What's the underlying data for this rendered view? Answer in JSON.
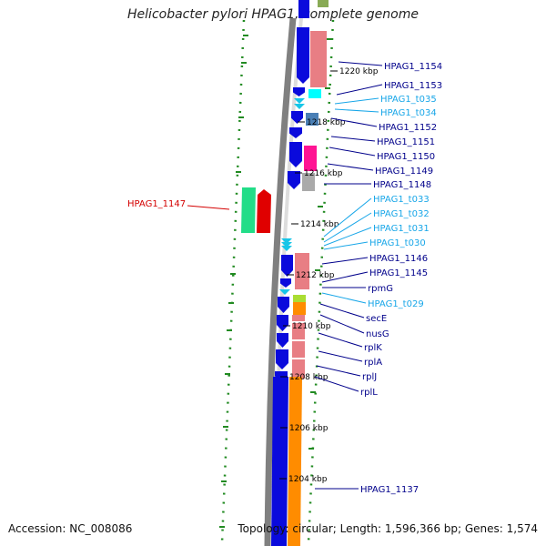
{
  "title": "Helicobacter pylori HPAG1, complete genome",
  "footer": {
    "accession": "Accession: NC_008086",
    "topology": "Topology: circular; Length: 1,596,366 bp; Genes: 1,574"
  },
  "colors": {
    "cds": "#0a0adc",
    "cds_track": "#e87e84",
    "trna": "#17c6e8",
    "trna_track": "#00ffff",
    "rrna_like": "#4a7fb5",
    "pink_magenta": "#ff1493",
    "grey": "#aaaaaa",
    "orange": "#ff8c00",
    "green_lime": "#aadd33",
    "highlight_label": "#d40000",
    "cds_label": "#00008b",
    "trna_label": "#17a6e8",
    "gc_dots": "#228b22"
  },
  "scale_labels": [
    "1220 kbp",
    "1218 kbp",
    "1216 kbp",
    "1214 kbp",
    "1212 kbp",
    "1210 kbp",
    "1208 kbp",
    "1206 kbp",
    "1204 kbp"
  ],
  "gene_labels": [
    {
      "text": "HPAG1_1154",
      "kind": "cds"
    },
    {
      "text": "HPAG1_1153",
      "kind": "cds"
    },
    {
      "text": "HPAG1_t035",
      "kind": "trna"
    },
    {
      "text": "HPAG1_t034",
      "kind": "trna"
    },
    {
      "text": "HPAG1_1152",
      "kind": "cds"
    },
    {
      "text": "HPAG1_1151",
      "kind": "cds"
    },
    {
      "text": "HPAG1_1150",
      "kind": "cds"
    },
    {
      "text": "HPAG1_1149",
      "kind": "cds"
    },
    {
      "text": "HPAG1_1148",
      "kind": "cds"
    },
    {
      "text": "HPAG1_t033",
      "kind": "trna"
    },
    {
      "text": "HPAG1_t032",
      "kind": "trna"
    },
    {
      "text": "HPAG1_t031",
      "kind": "trna"
    },
    {
      "text": "HPAG1_t030",
      "kind": "trna"
    },
    {
      "text": "HPAG1_1146",
      "kind": "cds"
    },
    {
      "text": "HPAG1_1145",
      "kind": "cds"
    },
    {
      "text": "rpmG",
      "kind": "cds"
    },
    {
      "text": "HPAG1_t029",
      "kind": "trna"
    },
    {
      "text": "secE",
      "kind": "cds"
    },
    {
      "text": "nusG",
      "kind": "cds"
    },
    {
      "text": "rplK",
      "kind": "cds"
    },
    {
      "text": "rplA",
      "kind": "cds"
    },
    {
      "text": "rplJ",
      "kind": "cds"
    },
    {
      "text": "rplL",
      "kind": "cds"
    },
    {
      "text": "HPAG1_1137",
      "kind": "cds"
    }
  ],
  "highlight_label": {
    "text": "HPAG1_1147",
    "kind": "highlight"
  }
}
